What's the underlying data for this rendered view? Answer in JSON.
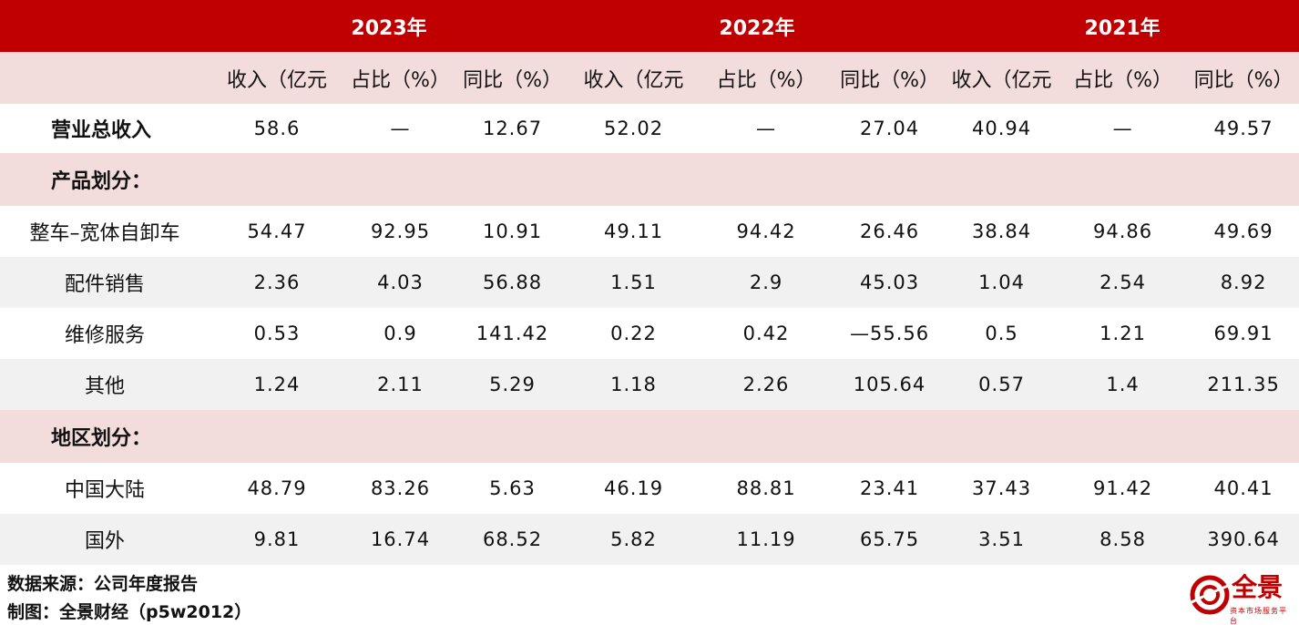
{
  "years": [
    "2023年",
    "2022年",
    "2021年"
  ],
  "column_headers": [
    "收入（亿元",
    "占比（%）",
    "同比（%）",
    "收入（亿元",
    "占比（%）",
    "同比（%）",
    "收入（亿元",
    "占比（%）",
    "同比（%）"
  ],
  "total_row": {
    "label": "营业总收入",
    "values": [
      "58.6",
      "—",
      "12.67",
      "52.02",
      "—",
      "27.04",
      "40.94",
      "—",
      "49.57"
    ]
  },
  "product_section": "产品划分：",
  "product_rows": [
    {
      "label": "整车–宽体自卸车",
      "values": [
        "54.47",
        "92.95",
        "10.91",
        "49.11",
        "94.42",
        "26.46",
        "38.84",
        "94.86",
        "49.69"
      ]
    },
    {
      "label": "配件销售",
      "values": [
        "2.36",
        "4.03",
        "56.88",
        "1.51",
        "2.9",
        "45.03",
        "1.04",
        "2.54",
        "8.92"
      ]
    },
    {
      "label": "维修服务",
      "values": [
        "0.53",
        "0.9",
        "141.42",
        "0.22",
        "0.42",
        "—55.56",
        "0.5",
        "1.21",
        "69.91"
      ]
    },
    {
      "label": "其他",
      "values": [
        "1.24",
        "2.11",
        "5.29",
        "1.18",
        "2.26",
        "105.64",
        "0.57",
        "1.4",
        "211.35"
      ]
    }
  ],
  "region_section": "地区划分：",
  "region_rows": [
    {
      "label": "中国大陆",
      "values": [
        "48.79",
        "83.26",
        "5.63",
        "46.19",
        "88.81",
        "23.41",
        "37.43",
        "91.42",
        "40.41"
      ]
    },
    {
      "label": "国外",
      "values": [
        "9.81",
        "16.74",
        "68.52",
        "5.82",
        "11.19",
        "65.75",
        "3.51",
        "8.58",
        "390.64"
      ]
    }
  ],
  "footer": {
    "source": "数据来源：公司年度报告",
    "maker": "制图：全景财经（p5w2012）"
  },
  "logo": {
    "name": "全景",
    "sub": "资本市场服务平台",
    "icon": "quanjing-logo-icon"
  },
  "colors": {
    "header_red": "#c00000",
    "pink": "#f3dcdc",
    "stripe": "#f1f1f1"
  }
}
